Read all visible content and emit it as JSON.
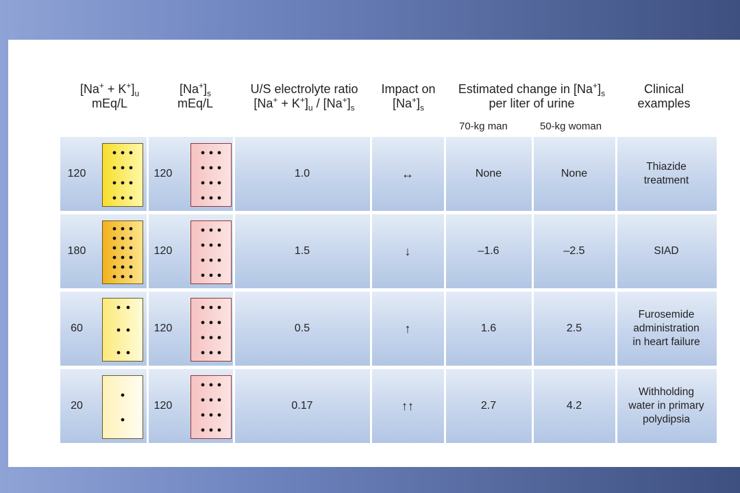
{
  "headers": {
    "urine_conc": {
      "line1a": "[Na",
      "sup1": "+",
      "line1b": " + K",
      "sup2": "+",
      "line1c": "]",
      "sub": "u",
      "line2": "mEq/L"
    },
    "serum_conc": {
      "line1a": "[Na",
      "sup1": "+",
      "line1b": "]",
      "sub": "s",
      "line2": "mEq/L"
    },
    "ratio": {
      "line1": "U/S electrolyte ratio",
      "line2a": "[Na",
      "sup1": "+",
      "line2b": " + K",
      "sup2": "+",
      "line2c": "]",
      "sub1": "u",
      "line2d": " / [Na",
      "sup3": "+",
      "line2e": "]",
      "sub2": "s"
    },
    "impact": {
      "line1": "Impact on",
      "line2a": "[Na",
      "sup": "+",
      "line2b": "]",
      "sub": "s"
    },
    "estimated": {
      "line1a": "Estimated change in [Na",
      "sup": "+",
      "line1b": "]",
      "sub": "s",
      "line2": "per liter of urine"
    },
    "clinical": {
      "line1": "Clinical",
      "line2": "examples"
    },
    "man": "70-kg man",
    "woman": "50-kg woman"
  },
  "rows": [
    {
      "urine": "120",
      "serum": "120",
      "ratio": "1.0",
      "impact": "↔",
      "man": "None",
      "woman": "None",
      "clinical": [
        "Thiazide",
        "treatment"
      ],
      "urine_dots": 12,
      "serum_dots": 12
    },
    {
      "urine": "180",
      "serum": "120",
      "ratio": "1.5",
      "impact": "↓",
      "man": "–1.6",
      "woman": "–2.5",
      "clinical": [
        "SIAD"
      ],
      "urine_dots": 18,
      "serum_dots": 12
    },
    {
      "urine": "60",
      "serum": "120",
      "ratio": "0.5",
      "impact": "↑",
      "man": "1.6",
      "woman": "2.5",
      "clinical": [
        "Furosemide",
        "administration",
        "in heart failure"
      ],
      "urine_dots": 6,
      "serum_dots": 12
    },
    {
      "urine": "20",
      "serum": "120",
      "ratio": "0.17",
      "impact": "↑↑",
      "man": "2.7",
      "woman": "4.2",
      "clinical": [
        "Withholding",
        "water in primary",
        "polydipsia"
      ],
      "urine_dots": 2,
      "serum_dots": 12
    }
  ],
  "colors": {
    "row_tint": "#c6d5ec",
    "serum_box": "#f5c3c2",
    "urine_box_120": "#f7de2c",
    "urine_box_180": "#f2b21d",
    "urine_box_60": "#fbe97a",
    "urine_box_20": "#fff1b8"
  }
}
